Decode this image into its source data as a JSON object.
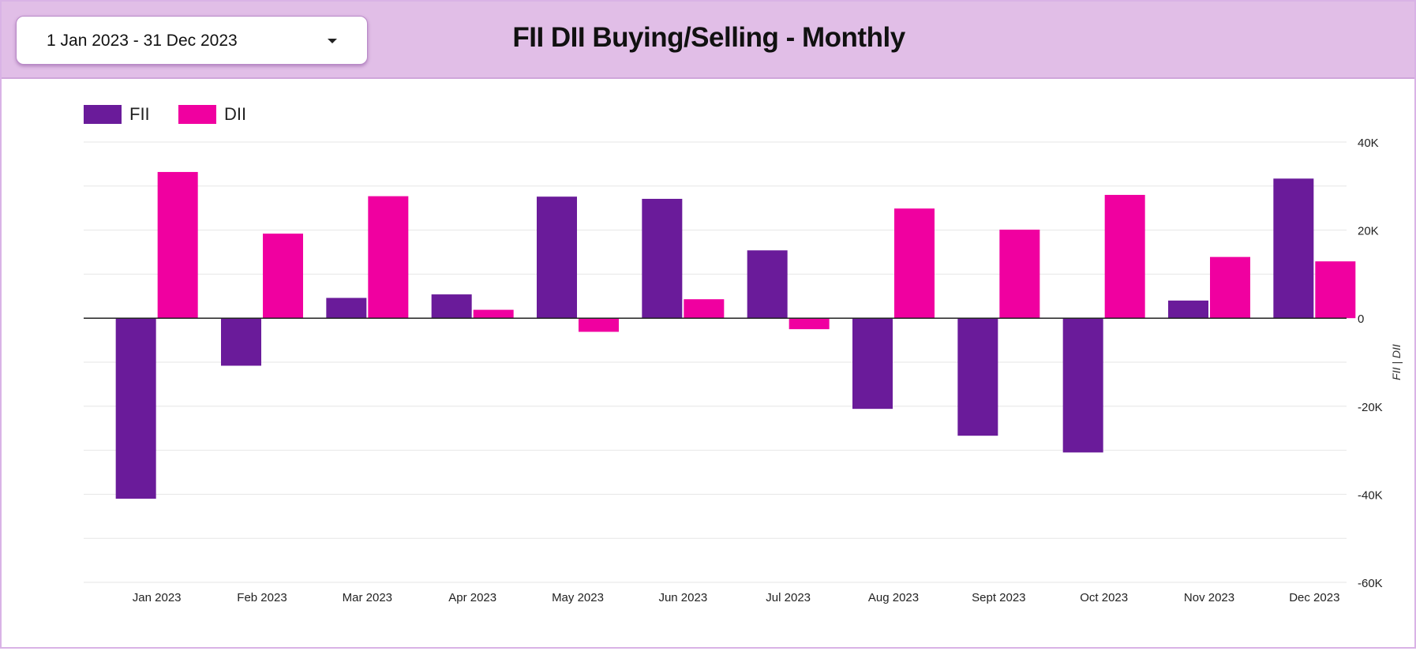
{
  "header": {
    "date_range": "1 Jan 2023 - 31 Dec 2023",
    "title": "FII DII Buying/Selling - Monthly"
  },
  "colors": {
    "header_bg": "#e1bee7",
    "fii": "#6a1b9a",
    "dii": "#f000a0"
  },
  "icons": {
    "date_dropdown": "caret-down-icon"
  },
  "chart_data": {
    "type": "bar",
    "categories": [
      "Jan 2023",
      "Feb 2023",
      "Mar 2023",
      "Apr 2023",
      "May 2023",
      "Jun 2023",
      "Jul 2023",
      "Aug 2023",
      "Sept 2023",
      "Oct 2023",
      "Nov 2023",
      "Dec 2023"
    ],
    "series": [
      {
        "name": "FII",
        "color": "#6a1b9a",
        "values": [
          -41000,
          -10800,
          4600,
          5400,
          27600,
          27100,
          15400,
          -20600,
          -26700,
          -30500,
          4000,
          31700
        ]
      },
      {
        "name": "DII",
        "color": "#f000a0",
        "values": [
          33200,
          19200,
          27700,
          1900,
          -3100,
          4300,
          -2500,
          24900,
          20100,
          28000,
          13900,
          12900
        ]
      }
    ],
    "ylabel": "FII | DII",
    "ylim": [
      -60000,
      40000
    ],
    "yticks": [
      40000,
      20000,
      0,
      -20000,
      -40000,
      -60000
    ],
    "ytick_labels": [
      "40K",
      "20K",
      "0",
      "-20K",
      "-40K",
      "-60K"
    ],
    "y_axis_side": "right",
    "grid": true,
    "legend": "top-left"
  }
}
